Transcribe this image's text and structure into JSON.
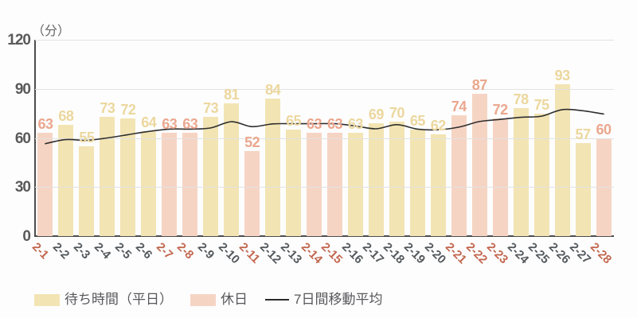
{
  "y_axis": {
    "unit": "（分）",
    "ticks": [
      0,
      30,
      60,
      90,
      120
    ]
  },
  "legend": {
    "weekday_label": "待ち時間（平日）",
    "holiday_label": "休日",
    "ma_label": "7日間移動平均"
  },
  "colors": {
    "bar_weekday": "#f2e4b3",
    "bar_holiday": "#f6d4c4",
    "value_label_weekday": "#ecd79e",
    "value_label_holiday": "#eba78e",
    "xtick_weekday": "#54595d",
    "xtick_holiday": "#c2674f",
    "ma_line": "#2e2e2e",
    "gridline": "#e2e2e2",
    "axis": "#4d4d4d"
  },
  "chart_data": {
    "type": "bar",
    "title": "",
    "ylabel": "（分）",
    "ylim": [
      0,
      120
    ],
    "yticks": [
      0,
      30,
      60,
      90,
      120
    ],
    "grid": true,
    "legend_position": "bottom",
    "categories": [
      "2-1",
      "2-2",
      "2-3",
      "2-4",
      "2-5",
      "2-6",
      "2-7",
      "2-8",
      "2-9",
      "2-10",
      "2-11",
      "2-12",
      "2-13",
      "2-14",
      "2-15",
      "2-16",
      "2-17",
      "2-18",
      "2-19",
      "2-20",
      "2-21",
      "2-22",
      "2-23",
      "2-24",
      "2-25",
      "2-26",
      "2-27",
      "2-28"
    ],
    "day_type": [
      "holiday",
      "weekday",
      "weekday",
      "weekday",
      "weekday",
      "weekday",
      "holiday",
      "holiday",
      "weekday",
      "weekday",
      "holiday",
      "weekday",
      "weekday",
      "holiday",
      "holiday",
      "weekday",
      "weekday",
      "weekday",
      "weekday",
      "weekday",
      "holiday",
      "holiday",
      "holiday",
      "weekday",
      "weekday",
      "weekday",
      "weekday",
      "holiday"
    ],
    "series": [
      {
        "name": "待ち時間（平日）",
        "type": "bar",
        "values": [
          null,
          68,
          55,
          73,
          72,
          64,
          null,
          null,
          73,
          81,
          null,
          84,
          65,
          null,
          null,
          63,
          69,
          70,
          65,
          62,
          null,
          null,
          null,
          78,
          75,
          93,
          57,
          null
        ]
      },
      {
        "name": "休日",
        "type": "bar",
        "values": [
          63,
          null,
          null,
          null,
          null,
          null,
          63,
          63,
          null,
          null,
          52,
          null,
          null,
          63,
          63,
          null,
          null,
          null,
          null,
          null,
          74,
          87,
          72,
          null,
          null,
          null,
          null,
          60
        ]
      },
      {
        "name": "7日間移動平均",
        "type": "line",
        "values": [
          56.5,
          59,
          58.5,
          60,
          62,
          64,
          65.4,
          65.4,
          66.1,
          69.9,
          66.9,
          68.6,
          68.7,
          68.7,
          68.7,
          67.3,
          65.6,
          68.1,
          65.4,
          65.0,
          66.6,
          70.0,
          71.3,
          72.6,
          73.3,
          77.3,
          76.6,
          74.6
        ]
      }
    ]
  }
}
